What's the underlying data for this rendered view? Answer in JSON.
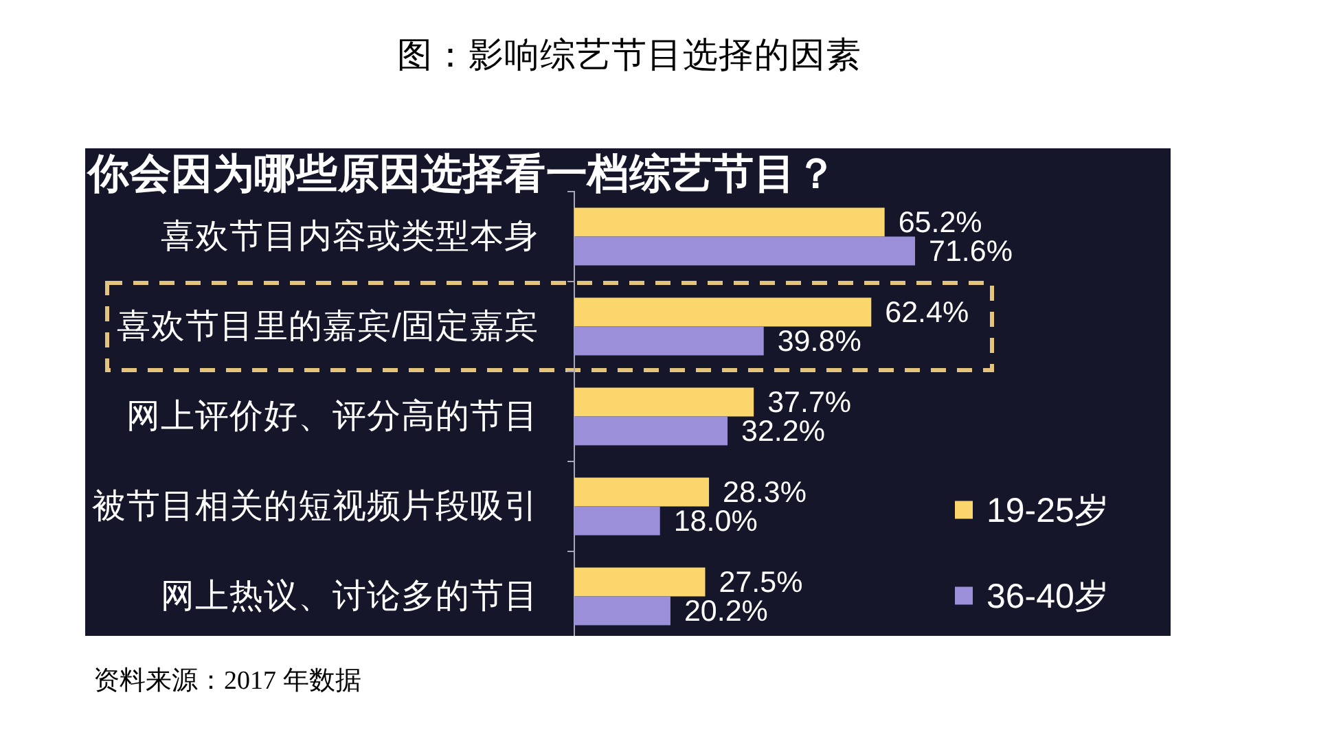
{
  "chart_data": {
    "type": "bar",
    "orientation": "horizontal",
    "title": "图：影响综艺节目选择的因素",
    "subtitle": "你会因为哪些原因选择看一档综艺节目？",
    "categories": [
      "喜欢节目内容或类型本身",
      "喜欢节目里的嘉宾/固定嘉宾",
      "网上评价好、评分高的节目",
      "被节目相关的短视频片段吸引",
      "网上热议、讨论多的节目"
    ],
    "series": [
      {
        "name": "19-25岁",
        "color": "#fad66c",
        "values": [
          65.2,
          62.4,
          37.7,
          28.3,
          27.5
        ],
        "value_labels": [
          "65.2%",
          "62.4%",
          "37.7%",
          "28.3%",
          "27.5%"
        ]
      },
      {
        "name": "36-40岁",
        "color": "#9a8fd8",
        "values": [
          71.6,
          39.8,
          32.2,
          18.0,
          20.2
        ],
        "value_labels": [
          "71.6%",
          "39.8%",
          "32.2%",
          "18.0%",
          "20.2%"
        ]
      }
    ],
    "legend": "bottom right",
    "annotations": [
      "资料来源：2017 年数据"
    ]
  }
}
